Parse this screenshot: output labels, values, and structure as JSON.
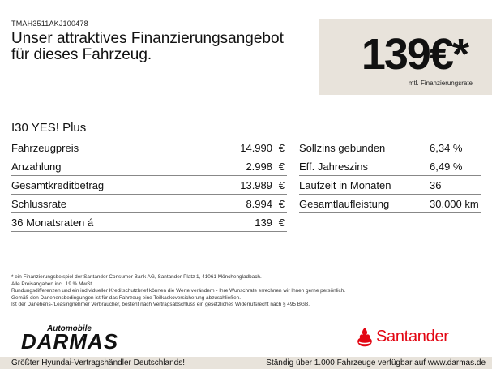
{
  "vin": "TMAH3511AKJ100478",
  "headline": {
    "line1": "Unser attraktives Finanzierungsangebot",
    "line2": "für dieses Fahrzeug."
  },
  "price": {
    "amount": "139€*",
    "label": "mtl. Finanzierungsrate"
  },
  "model": "I30 YES! Plus",
  "left_table": [
    {
      "label": "Fahrzeugpreis",
      "value": "14.990",
      "currency": "€"
    },
    {
      "label": "Anzahlung",
      "value": "2.998",
      "currency": "€"
    },
    {
      "label": "Gesamtkreditbetrag",
      "value": "13.989",
      "currency": "€"
    },
    {
      "label": "Schlussrate",
      "value": "8.994",
      "currency": "€"
    },
    {
      "label": "36 Monatsraten á",
      "value": "139",
      "currency": "€"
    }
  ],
  "right_table": [
    {
      "label": "Sollzins gebunden",
      "value": "6,34 %"
    },
    {
      "label": "Eff. Jahreszins",
      "value": "6,49 %"
    },
    {
      "label": "Laufzeit in Monaten",
      "value": "36"
    },
    {
      "label": "Gesamtlaufleistung",
      "value": "30.000 km"
    }
  ],
  "footnote": [
    "* ein Finanzierungsbeispiel der Santander Consumer Bank AG, Santander-Platz 1, 41061 Mönchengladbach.",
    "Alle Preisangaben incl. 19 % MwSt.",
    "Rundungsdifferenzen und ein individueller Kreditschutzbrief können die Werte verändern - Ihre Wunschrate errechnen wir Ihnen gerne persönlich.",
    "Gemäß den Darlehensbedingungen ist für das Fahrzeug eine Teilkaskoversicherung abzuschließen.",
    "Ist der Darlehens-/Leasingnehmer Verbraucher, besteht nach Vertragsabschluss ein gesetzliches Widerrufsrecht nach § 495 BGB."
  ],
  "dealer": {
    "small": "Automobile",
    "big": "DARMAS"
  },
  "bank": {
    "name": "Santander",
    "color": "#e30613"
  },
  "footer": {
    "left": "Größter Hyundai-Vertragshändler Deutschlands!",
    "right": "Ständig über 1.000 Fahrzeuge verfügbar auf www.darmas.de"
  },
  "colors": {
    "accent_box": "#e8e3db",
    "brand_red": "#e30613"
  }
}
